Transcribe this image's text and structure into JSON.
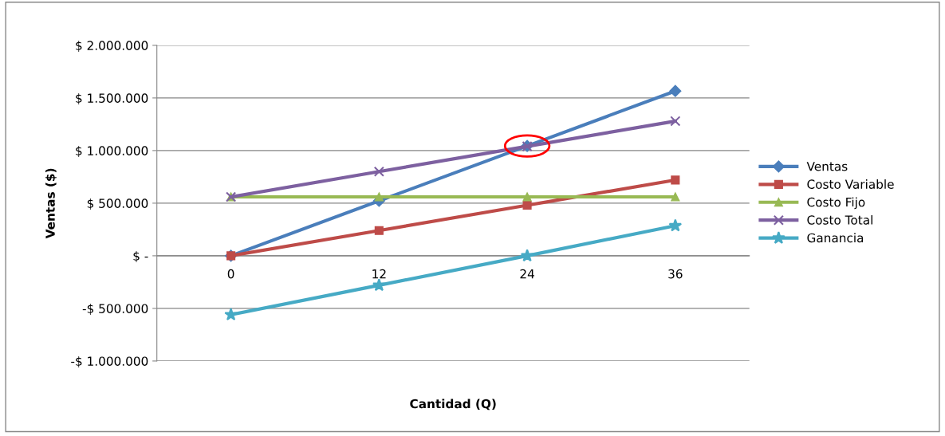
{
  "chart_data": {
    "type": "line",
    "xlabel": "Cantidad (Q)",
    "ylabel": "Ventas ($)",
    "categories": [
      "0",
      "12",
      "24",
      "36"
    ],
    "series": [
      {
        "name": "Ventas",
        "color": "#4a7ebb",
        "marker": "diamond",
        "values": [
          0,
          522000,
          1044000,
          1566000
        ]
      },
      {
        "name": "Costo Variable",
        "color": "#be4b48",
        "marker": "square",
        "values": [
          0,
          240000,
          480000,
          720000
        ]
      },
      {
        "name": "Costo Fijo",
        "color": "#98b954",
        "marker": "triangle",
        "values": [
          560000,
          560000,
          560000,
          560000
        ]
      },
      {
        "name": "Costo Total",
        "color": "#7d60a0",
        "marker": "cross",
        "values": [
          560000,
          800000,
          1040000,
          1280000
        ]
      },
      {
        "name": "Ganancia",
        "color": "#46aac5",
        "marker": "star",
        "values": [
          -560000,
          -280000,
          0,
          286000
        ]
      }
    ],
    "ylim": [
      -1000000,
      2000000
    ],
    "yticks": [
      {
        "value": -1000000,
        "label": "-$ 1.000.000"
      },
      {
        "value": -500000,
        "label": "-$ 500.000"
      },
      {
        "value": 0,
        "label": "$ -"
      },
      {
        "value": 500000,
        "label": "$ 500.000"
      },
      {
        "value": 1000000,
        "label": "$ 1.000.000"
      },
      {
        "value": 1500000,
        "label": "$ 1.500.000"
      },
      {
        "value": 2000000,
        "label": "$ 2.000.000"
      }
    ],
    "grid": "y",
    "legend": "right"
  }
}
